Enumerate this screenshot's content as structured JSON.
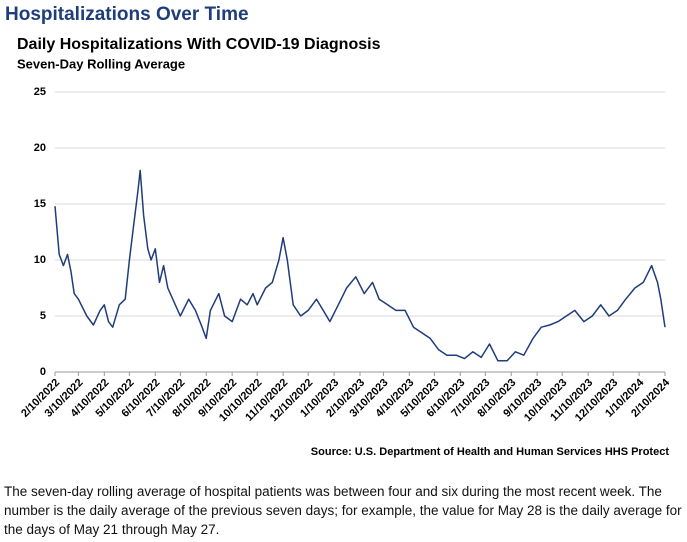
{
  "header": {
    "title": "Hospitalizations Over Time"
  },
  "chart_data": {
    "type": "line",
    "title": "Daily Hospitalizations With COVID-19 Diagnosis",
    "subtitle": "Seven-Day Rolling Average",
    "source": "Source: U.S. Department of Health and Human Services HHS Protect",
    "x": [
      "2/10/2022",
      "2/15/2022",
      "2/20/2022",
      "2/25/2022",
      "3/1/2022",
      "3/5/2022",
      "3/10/2022",
      "3/20/2022",
      "3/28/2022",
      "4/5/2022",
      "4/10/2022",
      "4/15/2022",
      "4/20/2022",
      "4/28/2022",
      "5/5/2022",
      "5/10/2022",
      "5/15/2022",
      "5/20/2022",
      "5/23/2022",
      "5/27/2022",
      "6/1/2022",
      "6/5/2022",
      "6/10/2022",
      "6/15/2022",
      "6/20/2022",
      "6/25/2022",
      "7/1/2022",
      "7/10/2022",
      "7/20/2022",
      "7/28/2022",
      "8/5/2022",
      "8/10/2022",
      "8/15/2022",
      "8/25/2022",
      "9/1/2022",
      "9/10/2022",
      "9/20/2022",
      "9/28/2022",
      "10/5/2022",
      "10/10/2022",
      "10/20/2022",
      "10/28/2022",
      "11/5/2022",
      "11/10/2022",
      "11/15/2022",
      "11/22/2022",
      "12/1/2022",
      "12/10/2022",
      "12/20/2022",
      "12/28/2022",
      "1/5/2023",
      "1/15/2023",
      "1/25/2023",
      "2/5/2023",
      "2/15/2023",
      "2/25/2023",
      "3/5/2023",
      "3/15/2023",
      "3/25/2023",
      "4/5/2023",
      "4/15/2023",
      "4/25/2023",
      "5/5/2023",
      "5/15/2023",
      "5/25/2023",
      "6/5/2023",
      "6/15/2023",
      "6/25/2023",
      "7/5/2023",
      "7/15/2023",
      "7/25/2023",
      "8/5/2023",
      "8/15/2023",
      "8/25/2023",
      "9/5/2023",
      "9/15/2023",
      "9/25/2023",
      "10/5/2023",
      "10/15/2023",
      "10/25/2023",
      "11/5/2023",
      "11/15/2023",
      "11/25/2023",
      "12/5/2023",
      "12/15/2023",
      "12/25/2023",
      "1/5/2024",
      "1/15/2024",
      "1/25/2024",
      "2/1/2024",
      "2/5/2024",
      "2/10/2024"
    ],
    "series": [
      {
        "name": "Daily hospitalizations",
        "color": "#1f3d7a",
        "values": [
          14.8,
          10.5,
          9.5,
          10.5,
          9,
          7,
          6.5,
          5,
          4.2,
          5.5,
          6,
          4.5,
          4,
          6,
          6.5,
          10,
          13,
          16,
          18,
          14,
          11,
          10,
          11,
          8,
          9.5,
          7.5,
          6.5,
          5,
          6.5,
          5.5,
          4,
          3,
          5.5,
          7,
          5,
          4.5,
          6.5,
          6,
          7,
          6,
          7.5,
          8,
          10,
          12,
          10,
          6,
          5,
          5.5,
          6.5,
          5.5,
          4.5,
          6,
          7.5,
          8.5,
          7,
          8,
          6.5,
          6,
          5.5,
          5.5,
          4,
          3.5,
          3,
          2,
          1.5,
          1.5,
          1.2,
          1.8,
          1.3,
          2.5,
          1,
          1,
          1.8,
          1.5,
          3,
          4,
          4.2,
          4.5,
          5,
          5.5,
          4.5,
          5,
          6,
          5,
          5.5,
          6.5,
          7.5,
          8,
          9.5,
          8,
          6.5,
          4
        ]
      }
    ],
    "xlim": [
      "2/10/2022",
      "2/10/2024"
    ],
    "xticks": [
      "2/10/2022",
      "3/10/2022",
      "4/10/2022",
      "5/10/2022",
      "6/10/2022",
      "7/10/2022",
      "8/10/2022",
      "9/10/2022",
      "10/10/2022",
      "11/10/2022",
      "12/10/2022",
      "1/10/2023",
      "2/10/2023",
      "3/10/2023",
      "4/10/2023",
      "5/10/2023",
      "6/10/2023",
      "7/10/2023",
      "8/10/2023",
      "9/10/2023",
      "10/10/2023",
      "11/10/2023",
      "12/10/2023",
      "1/10/2024",
      "2/10/2024"
    ],
    "ylim": [
      0,
      25
    ],
    "yticks": [
      0,
      5,
      10,
      15,
      20,
      25
    ],
    "grid": true
  },
  "description": "The seven-day rolling average of hospital patients was between four and six during the most recent week. The number is the daily average of the previous seven days; for example, the value for May 28 is the daily average for the days of May 21 through May 27."
}
